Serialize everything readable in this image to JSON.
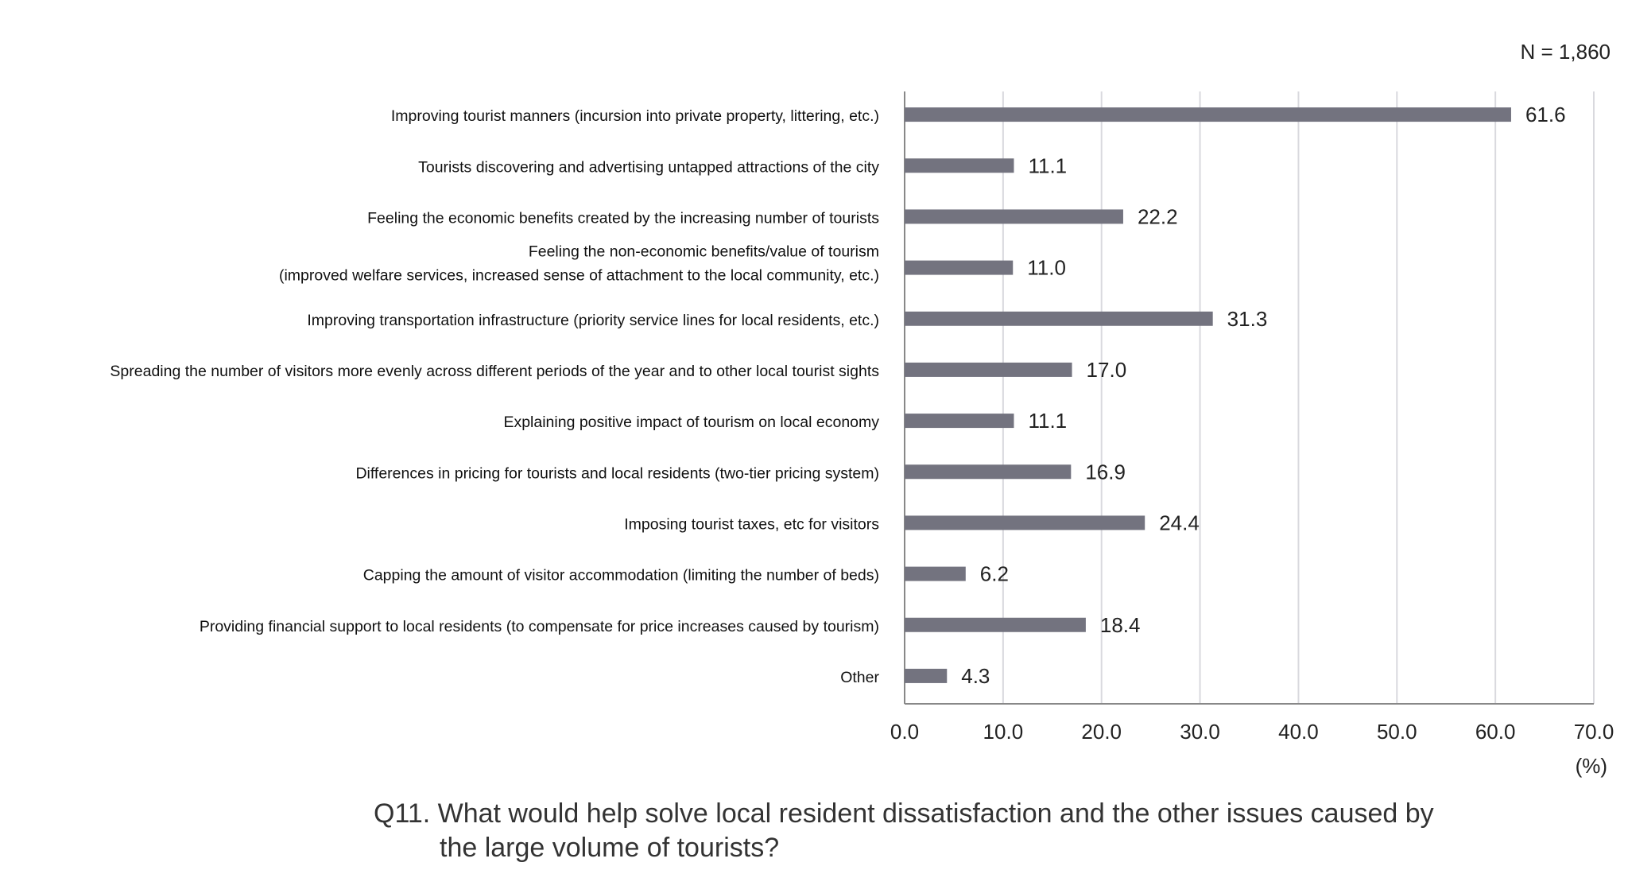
{
  "chart_data": {
    "type": "bar",
    "orientation": "horizontal",
    "title_lines": [
      "Q11. What would help solve local resident dissatisfaction and the other issues caused by",
      "the large  volume of tourists?"
    ],
    "sample_note": "N = 1,860",
    "xlabel": "(%)",
    "xlim": [
      0,
      70
    ],
    "xticks": [
      "0.0",
      "10.0",
      "20.0",
      "30.0",
      "40.0",
      "50.0",
      "60.0",
      "70.0"
    ],
    "grid": true,
    "bar_color": "#73737f",
    "grid_color": "#d9d9de",
    "categories": [
      [
        "Improving tourist manners (incursion into private property, littering, etc.)"
      ],
      [
        "Tourists discovering and advertising untapped attractions of the city"
      ],
      [
        "Feeling the economic benefits created by the increasing number of tourists"
      ],
      [
        "Feeling the non-economic benefits/value of tourism",
        "(improved welfare services, increased sense of attachment to the local community, etc.)"
      ],
      [
        "Improving transportation infrastructure (priority service lines for local residents, etc.)"
      ],
      [
        "Spreading the number of visitors more evenly across different periods of the year and to other local tourist sights"
      ],
      [
        "Explaining positive impact of tourism on local economy"
      ],
      [
        "Differences in pricing for tourists and local residents (two-tier pricing system)"
      ],
      [
        "Imposing tourist taxes, etc for visitors"
      ],
      [
        "Capping the amount of visitor accommodation (limiting the number of beds)"
      ],
      [
        "Providing financial support to local residents (to compensate for price increases caused by tourism)"
      ],
      [
        "Other"
      ]
    ],
    "values": [
      61.6,
      11.1,
      22.2,
      11.0,
      31.3,
      17.0,
      11.1,
      16.9,
      24.4,
      6.2,
      18.4,
      4.3
    ],
    "value_labels": [
      "61.6",
      "11.1",
      "22.2",
      "11.0",
      "31.3",
      "17.0",
      "11.1",
      "16.9",
      "24.4",
      "6.2",
      "18.4",
      "4.3"
    ]
  }
}
